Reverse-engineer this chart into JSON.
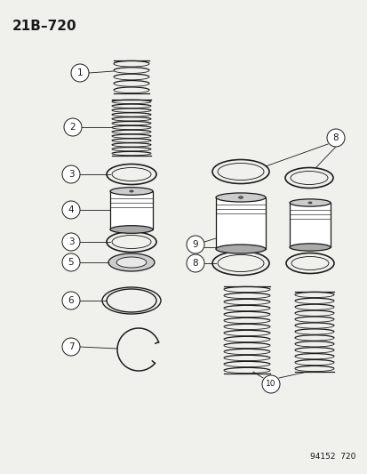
{
  "title": "21B–720",
  "footnote": "94152  720",
  "bg_color": "#f0f0ec",
  "line_color": "#1a1a1a",
  "label_font_size": 7.5,
  "title_font_size": 11
}
